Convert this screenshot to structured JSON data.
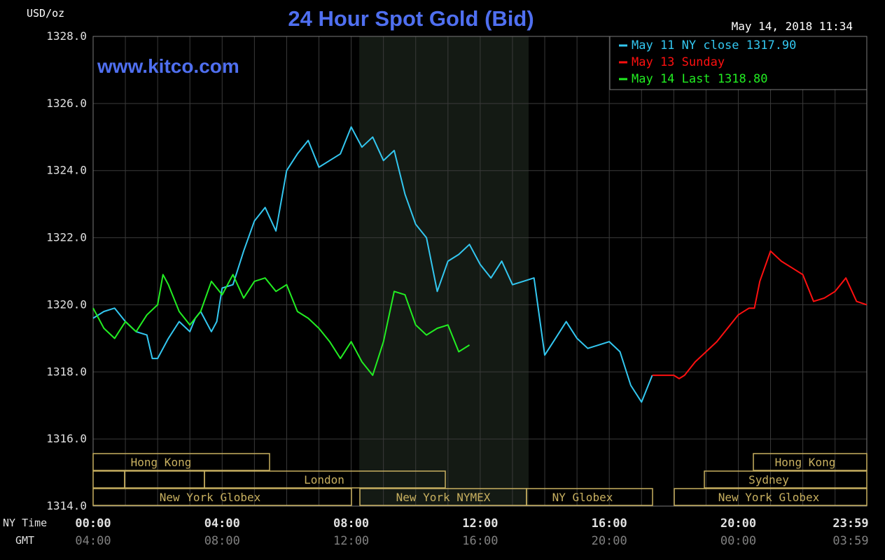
{
  "header": {
    "title": "24 Hour Spot Gold (Bid)",
    "unit": "USD/oz",
    "timestamp": "May 14, 2018 11:34",
    "watermark": "www.kitco.com"
  },
  "colors": {
    "background": "#000000",
    "grid": "#3a3a3a",
    "frame": "#7a7a7a",
    "title": "#4f6ff0",
    "may11": "#33c7f0",
    "may13": "#ff1010",
    "may14": "#22ee22",
    "market_box": "#c8b060",
    "shade": "#141a14",
    "axis_text": "#e0e0e0",
    "gmt_text": "#808080"
  },
  "legend": [
    {
      "label": "May 11 NY close 1317.90",
      "color": "#33c7f0"
    },
    {
      "label": "May 13 Sunday",
      "color": "#ff1010"
    },
    {
      "label": "May 14 Last 1318.80",
      "color": "#22ee22"
    }
  ],
  "axes": {
    "y_ticks": [
      "1314.0",
      "1316.0",
      "1318.0",
      "1320.0",
      "1322.0",
      "1324.0",
      "1326.0",
      "1328.0"
    ],
    "x_row_labels": {
      "ny": "NY Time",
      "gmt": "GMT"
    },
    "ny_ticks": [
      "00:00",
      "04:00",
      "08:00",
      "12:00",
      "16:00",
      "20:00",
      "23:59"
    ],
    "gmt_ticks": [
      "04:00",
      "08:00",
      "12:00",
      "16:00",
      "20:00",
      "00:00",
      "03:59"
    ]
  },
  "markets": [
    {
      "label": "Hong Kong",
      "row": 0
    },
    {
      "label": "London",
      "row": 1
    },
    {
      "label": "New York Globex",
      "row": 2
    },
    {
      "label": "New York NYMEX",
      "row": 2
    },
    {
      "label": "NY Globex",
      "row": 2
    },
    {
      "label": "Hong Kong",
      "row": 0
    },
    {
      "label": "Sydney",
      "row": 1
    },
    {
      "label": "New York Globex",
      "row": 2
    }
  ],
  "chart_data": {
    "type": "line",
    "title": "24 Hour Spot Gold (Bid)",
    "ylabel": "USD/oz",
    "xlabel": "",
    "ylim": [
      1314.0,
      1328.0
    ],
    "xlim": [
      "00:00",
      "23:59"
    ],
    "grid": true,
    "legend_position": "top-right",
    "shaded_window": [
      "08:15",
      "13:30"
    ],
    "series": [
      {
        "name": "May 11 NY close 1317.90",
        "color": "#33c7f0",
        "x": [
          "00:00",
          "00:20",
          "00:40",
          "01:00",
          "01:20",
          "01:40",
          "01:50",
          "02:00",
          "02:20",
          "02:40",
          "03:00",
          "03:10",
          "03:20",
          "03:40",
          "03:50",
          "04:00",
          "04:20",
          "04:40",
          "05:00",
          "05:20",
          "05:40",
          "06:00",
          "06:20",
          "06:40",
          "07:00",
          "07:20",
          "07:40",
          "08:00",
          "08:20",
          "08:40",
          "09:00",
          "09:20",
          "09:40",
          "10:00",
          "10:20",
          "10:40",
          "11:00",
          "11:20",
          "11:40",
          "12:00",
          "12:20",
          "12:40",
          "13:00",
          "13:20",
          "13:40",
          "14:00",
          "14:20",
          "14:40",
          "15:00",
          "15:20",
          "15:40",
          "16:00",
          "16:20",
          "16:40",
          "17:00",
          "17:20"
        ],
        "y": [
          1319.6,
          1319.8,
          1319.9,
          1319.5,
          1319.2,
          1319.1,
          1318.4,
          1318.4,
          1319.0,
          1319.5,
          1319.2,
          1319.6,
          1319.8,
          1319.2,
          1319.5,
          1320.5,
          1320.6,
          1321.6,
          1322.5,
          1322.9,
          1322.2,
          1324.0,
          1324.5,
          1324.9,
          1324.1,
          1324.3,
          1324.5,
          1325.3,
          1324.7,
          1325.0,
          1324.3,
          1324.6,
          1323.3,
          1322.4,
          1322.0,
          1320.4,
          1321.3,
          1321.5,
          1321.8,
          1321.2,
          1320.8,
          1321.3,
          1320.6,
          1320.7,
          1320.8,
          1318.5,
          1319.0,
          1319.5,
          1319.0,
          1318.7,
          1318.8,
          1318.9,
          1318.6,
          1317.6,
          1317.1,
          1317.9
        ]
      },
      {
        "name": "May 13 Sunday",
        "color": "#ff1010",
        "x": [
          "17:20",
          "17:40",
          "18:00",
          "18:10",
          "18:20",
          "18:40",
          "19:00",
          "19:20",
          "19:40",
          "20:00",
          "20:20",
          "20:30",
          "20:40",
          "21:00",
          "21:20",
          "21:40",
          "22:00",
          "22:20",
          "22:40",
          "23:00",
          "23:20",
          "23:40",
          "23:59"
        ],
        "y": [
          1317.9,
          1317.9,
          1317.9,
          1317.8,
          1317.9,
          1318.3,
          1318.6,
          1318.9,
          1319.3,
          1319.7,
          1319.9,
          1319.9,
          1320.7,
          1321.6,
          1321.3,
          1321.1,
          1320.9,
          1320.1,
          1320.2,
          1320.4,
          1320.8,
          1320.1,
          1320.0
        ]
      },
      {
        "name": "May 14 Last 1318.80",
        "color": "#22ee22",
        "x": [
          "00:00",
          "00:20",
          "00:40",
          "01:00",
          "01:20",
          "01:40",
          "02:00",
          "02:10",
          "02:20",
          "02:40",
          "03:00",
          "03:20",
          "03:40",
          "04:00",
          "04:20",
          "04:40",
          "05:00",
          "05:20",
          "05:40",
          "06:00",
          "06:20",
          "06:40",
          "07:00",
          "07:20",
          "07:40",
          "08:00",
          "08:20",
          "08:40",
          "09:00",
          "09:20",
          "09:40",
          "10:00",
          "10:20",
          "10:40",
          "11:00",
          "11:20",
          "11:40"
        ],
        "y": [
          1319.9,
          1319.3,
          1319.0,
          1319.5,
          1319.2,
          1319.7,
          1320.0,
          1320.9,
          1320.6,
          1319.8,
          1319.4,
          1319.8,
          1320.7,
          1320.3,
          1320.9,
          1320.2,
          1320.7,
          1320.8,
          1320.4,
          1320.6,
          1319.8,
          1319.6,
          1319.3,
          1318.9,
          1318.4,
          1318.9,
          1318.3,
          1317.9,
          1318.9,
          1320.4,
          1320.3,
          1319.4,
          1319.1,
          1319.3,
          1319.4,
          1318.6,
          1318.8
        ]
      }
    ]
  }
}
